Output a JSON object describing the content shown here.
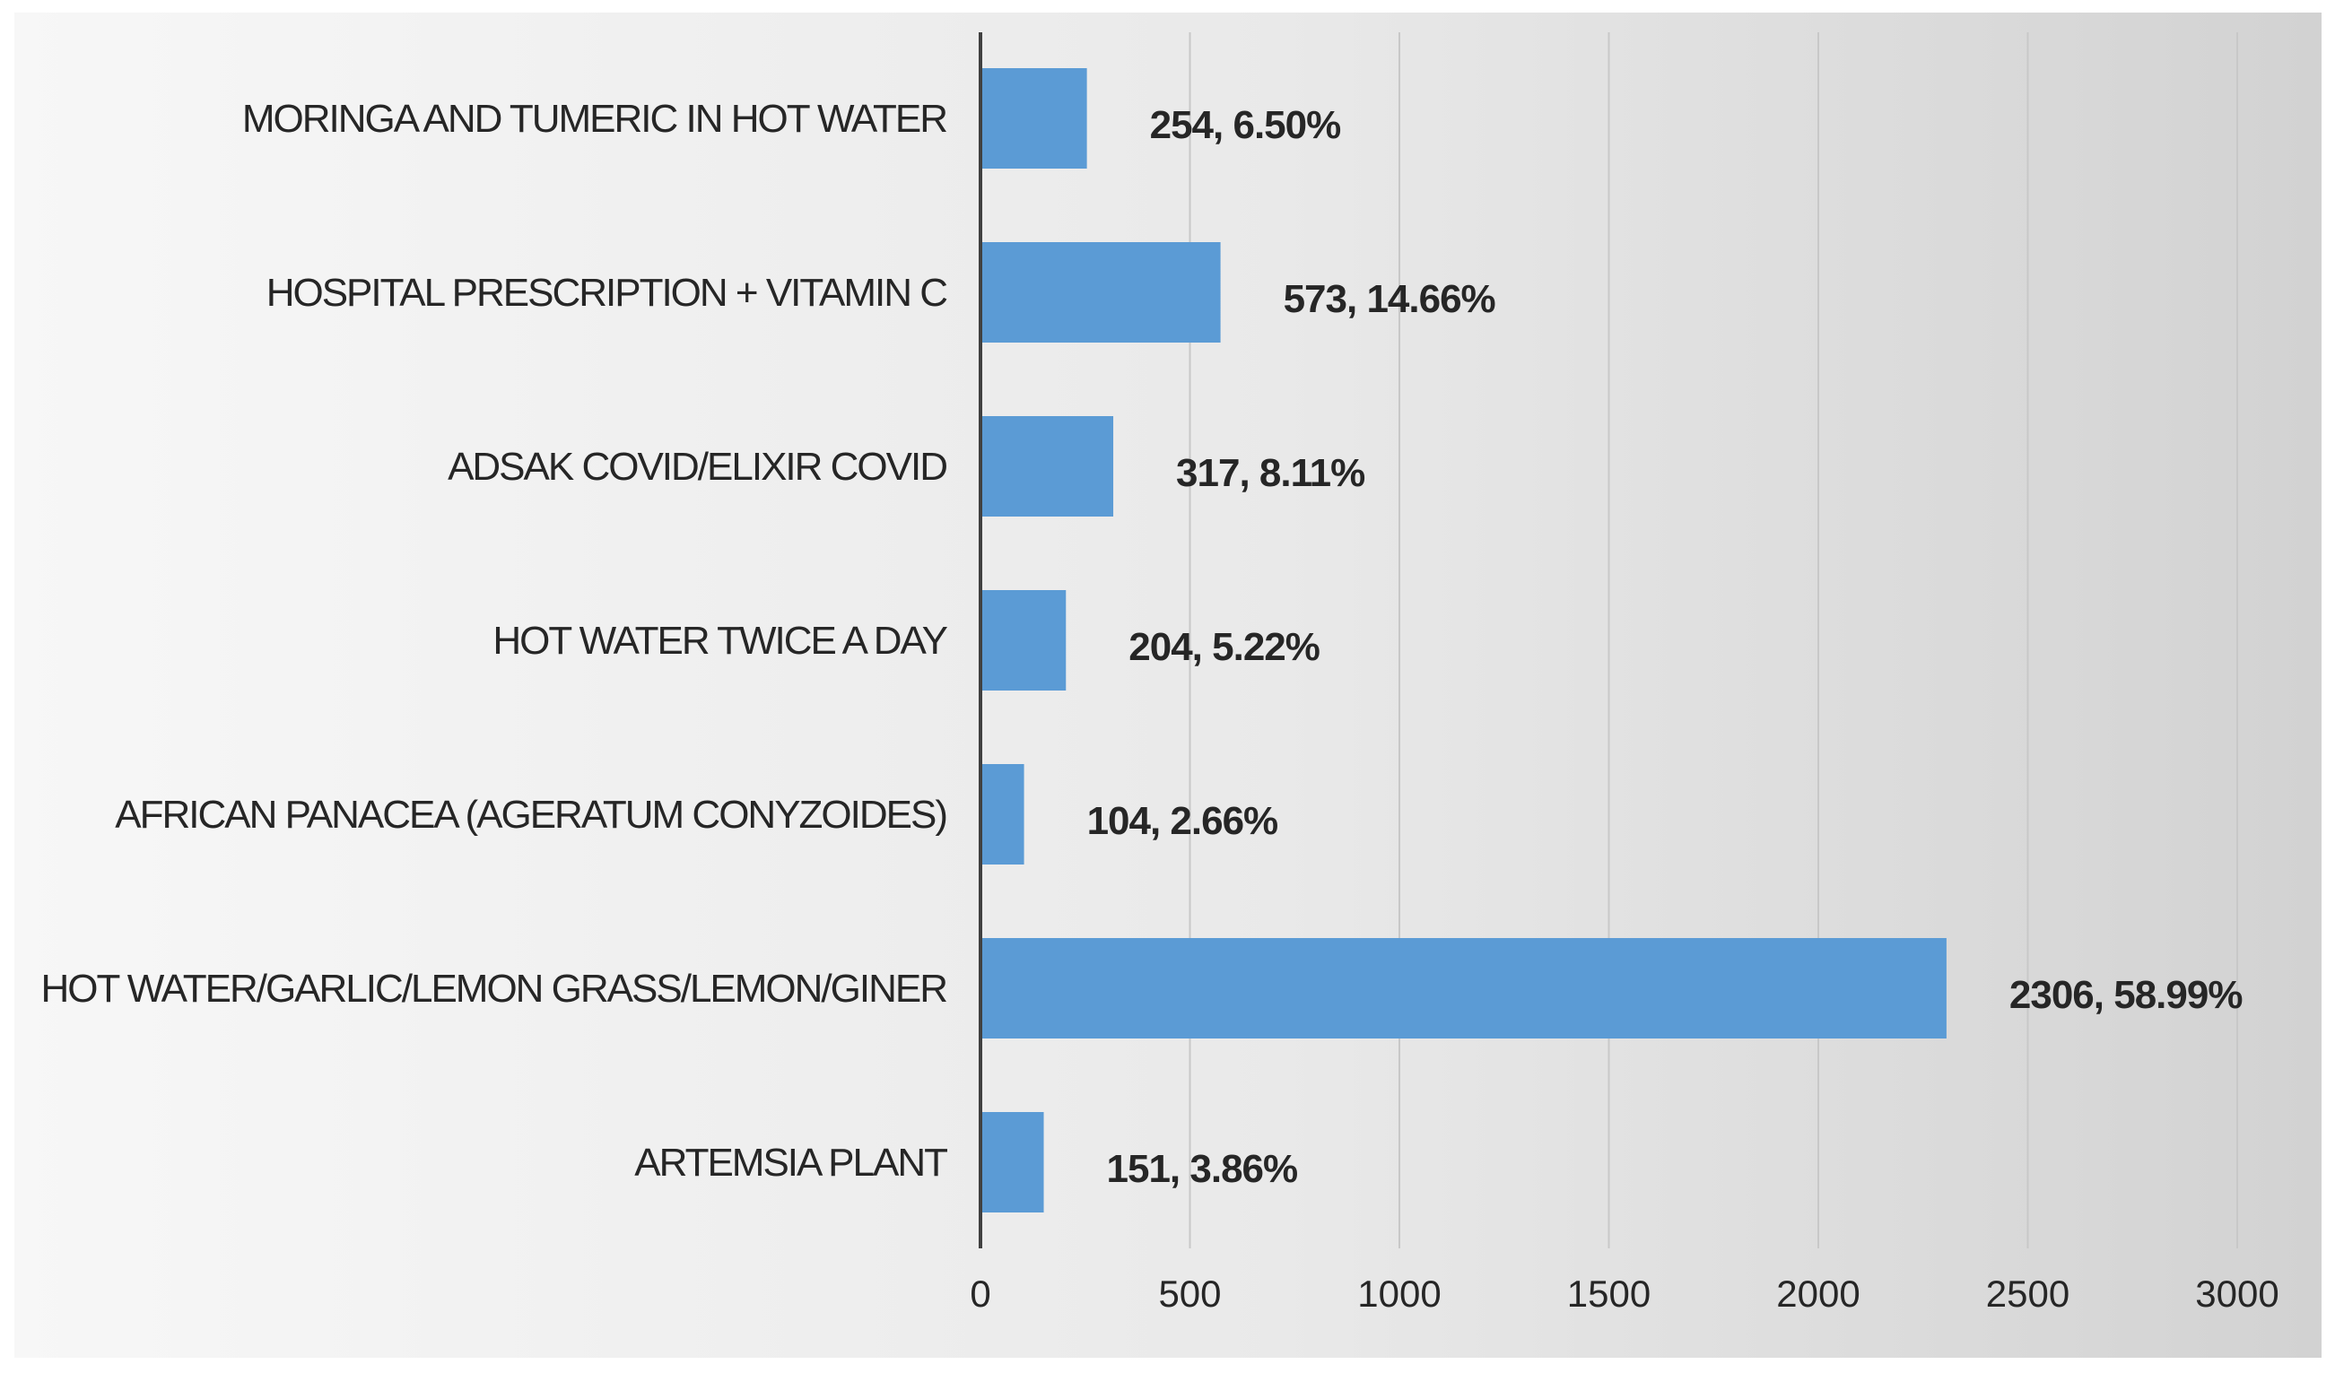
{
  "chart_data": {
    "type": "bar",
    "orientation": "horizontal",
    "categories": [
      "MORINGA AND TUMERIC IN HOT WATER",
      "HOSPITAL PRESCRIPTION + VITAMIN C",
      "ADSAK COVID/ELIXIR COVID",
      "HOT WATER TWICE A DAY",
      "AFRICAN PANACEA (AGERATUM CONYZOIDES)",
      "HOT WATER/GARLIC/LEMON GRASS/LEMON/GINER",
      "ARTEMSIA PLANT"
    ],
    "values": [
      254,
      573,
      317,
      204,
      104,
      2306,
      151
    ],
    "data_labels": [
      "254, 6.50%",
      "573, 14.66%",
      "317, 8.11%",
      "204, 5.22%",
      "104, 2.66%",
      "2306, 58.99%",
      "151, 3.86%"
    ],
    "xlim": [
      0,
      3000
    ],
    "x_ticks": [
      "0",
      "500",
      "1000",
      "1500",
      "2000",
      "2500",
      "3000"
    ],
    "grid": "vertical",
    "colors": {
      "bar": "#5b9bd5",
      "text": "#262626",
      "gridline": "#c8c8c8",
      "axis": "#404040"
    }
  }
}
